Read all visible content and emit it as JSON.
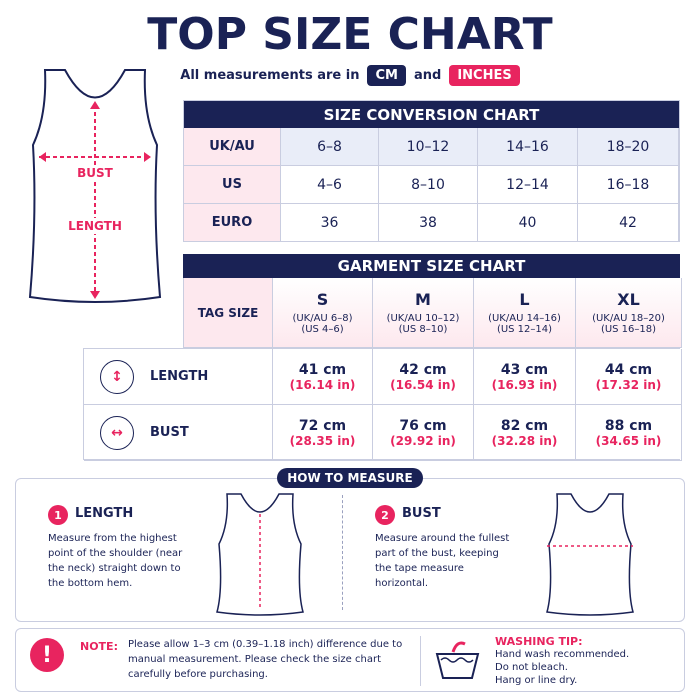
{
  "header": {
    "title": "TOP SIZE CHART",
    "subtitle": {
      "lead": "All measurements are in",
      "cm": "CM",
      "and": "and",
      "inches": "INCHES"
    }
  },
  "figure": {
    "bust": "BUST",
    "length": "LENGTH"
  },
  "conversion": {
    "title": "SIZE CONVERSION CHART",
    "rows": [
      [
        "UK/AU",
        "6–8",
        "10–12",
        "14–16",
        "18–20"
      ],
      [
        "US",
        "4–6",
        "8–10",
        "12–14",
        "16–18"
      ],
      [
        "EURO",
        "36",
        "38",
        "40",
        "42"
      ]
    ]
  },
  "garment": {
    "title": "GARMENT SIZE CHART",
    "tag_label": "TAG SIZE",
    "sizes": [
      {
        "size": "S",
        "uk": "(UK/AU 6–8)",
        "us": "(US 4–6)"
      },
      {
        "size": "M",
        "uk": "(UK/AU 10–12)",
        "us": "(US 8–10)"
      },
      {
        "size": "L",
        "uk": "(UK/AU 14–16)",
        "us": "(US 12–14)"
      },
      {
        "size": "XL",
        "uk": "(UK/AU 18–20)",
        "us": "(US 16–18)"
      }
    ],
    "rows": [
      {
        "label": "LENGTH",
        "cells": [
          {
            "cm": "41 cm",
            "in": "(16.14 in)"
          },
          {
            "cm": "42 cm",
            "in": "(16.54 in)"
          },
          {
            "cm": "43 cm",
            "in": "(16.93 in)"
          },
          {
            "cm": "44 cm",
            "in": "(17.32 in)"
          }
        ]
      },
      {
        "label": "BUST",
        "cells": [
          {
            "cm": "72 cm",
            "in": "(28.35 in)"
          },
          {
            "cm": "76 cm",
            "in": "(29.92 in)"
          },
          {
            "cm": "82 cm",
            "in": "(32.28 in)"
          },
          {
            "cm": "88 cm",
            "in": "(34.65 in)"
          }
        ]
      }
    ]
  },
  "how": {
    "title": "HOW TO MEASURE",
    "steps": [
      {
        "number": "1",
        "title": "LENGTH",
        "text": "Measure from the highest point of the shoulder (near the neck) straight down to the bottom hem."
      },
      {
        "number": "2",
        "title": "BUST",
        "text": "Measure around the fullest part of the bust, keeping the tape measure horizontal."
      }
    ]
  },
  "note": {
    "label": "NOTE:",
    "text": "Please allow 1–3 cm (0.39–1.18 inch) difference due to manual measurement. Please check the size chart carefully before purchasing."
  },
  "washing": {
    "title": "WASHING TIP:",
    "lines": [
      "Hand wash recommended.",
      "Do not bleach.",
      "Hang or line dry."
    ]
  }
}
